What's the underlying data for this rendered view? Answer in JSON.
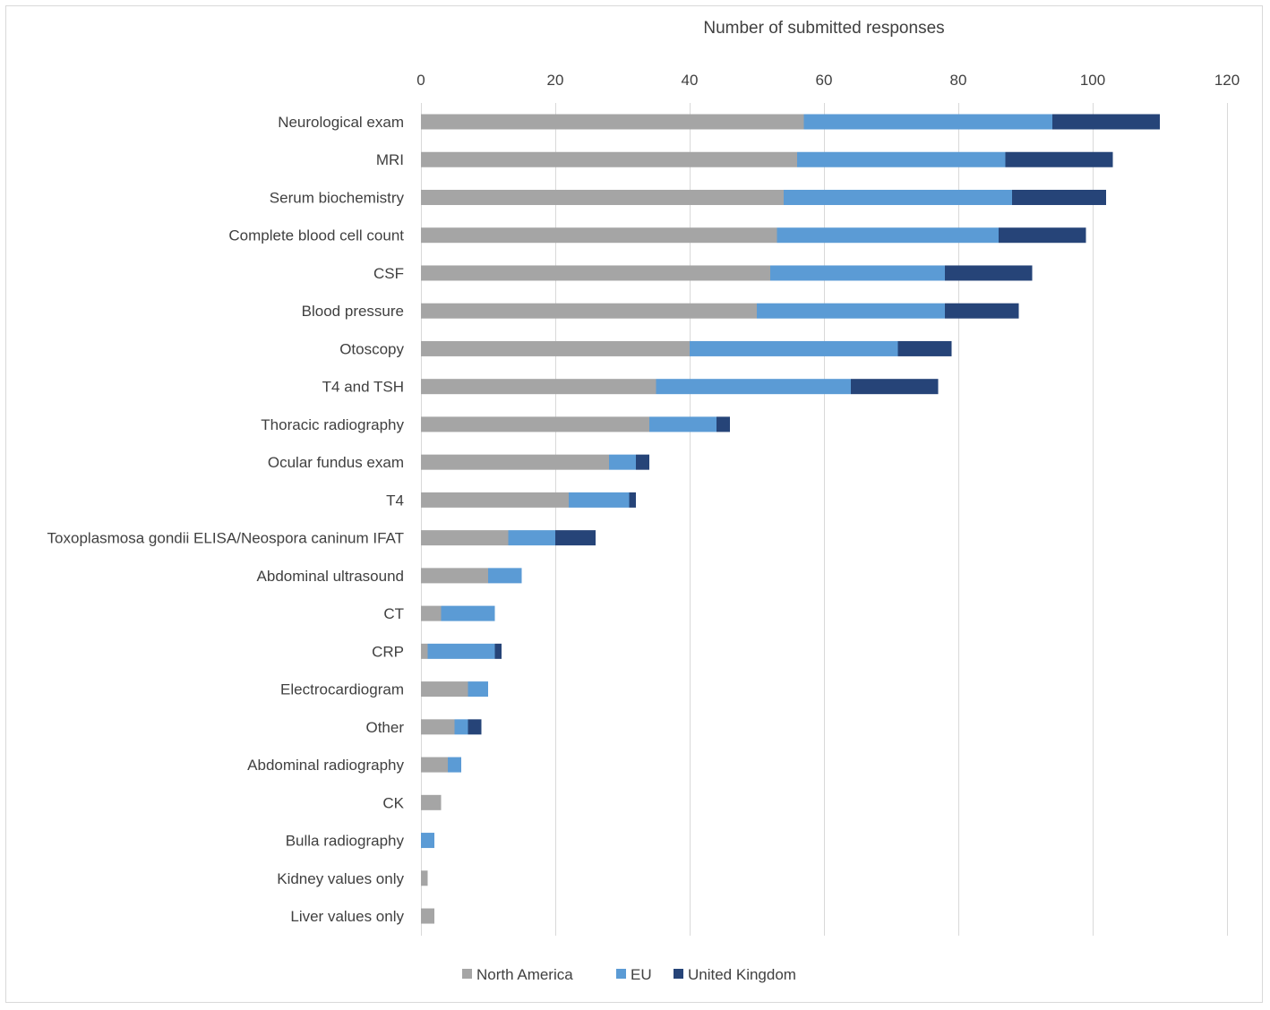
{
  "chart_data": {
    "type": "bar",
    "orientation": "horizontal",
    "stacked": true,
    "title": "",
    "xlabel": "Number of submitted responses",
    "ylabel": "",
    "xlim": [
      0,
      120
    ],
    "x_ticks": [
      0,
      20,
      40,
      60,
      80,
      100,
      120
    ],
    "grid": true,
    "legend_position": "bottom",
    "categories": [
      "Neurological exam",
      "MRI",
      "Serum biochemistry",
      "Complete blood cell count",
      "CSF",
      "Blood pressure",
      "Otoscopy",
      "T4 and TSH",
      "Thoracic radiography",
      "Ocular fundus exam",
      "T4",
      "Toxoplasmosa gondii ELISA/Neospora caninum IFAT",
      "Abdominal ultrasound",
      "CT",
      "CRP",
      "Electrocardiogram",
      "Other",
      "Abdominal radiography",
      "CK",
      "Bulla radiography",
      "Kidney values only",
      "Liver values only"
    ],
    "series": [
      {
        "name": "North America",
        "color": "#a5a5a5",
        "values": [
          57,
          56,
          54,
          53,
          52,
          50,
          40,
          35,
          34,
          28,
          22,
          13,
          10,
          3,
          1,
          7,
          5,
          4,
          3,
          0,
          1,
          2
        ]
      },
      {
        "name": "EU",
        "color": "#5b9bd5",
        "values": [
          37,
          31,
          34,
          33,
          26,
          28,
          31,
          29,
          10,
          4,
          9,
          7,
          5,
          8,
          10,
          3,
          2,
          2,
          0,
          2,
          0,
          0
        ]
      },
      {
        "name": "United Kingdom",
        "color": "#264478",
        "values": [
          16,
          16,
          14,
          13,
          13,
          11,
          8,
          13,
          2,
          2,
          1,
          6,
          0,
          0,
          1,
          0,
          2,
          0,
          0,
          0,
          0,
          0
        ]
      }
    ]
  }
}
